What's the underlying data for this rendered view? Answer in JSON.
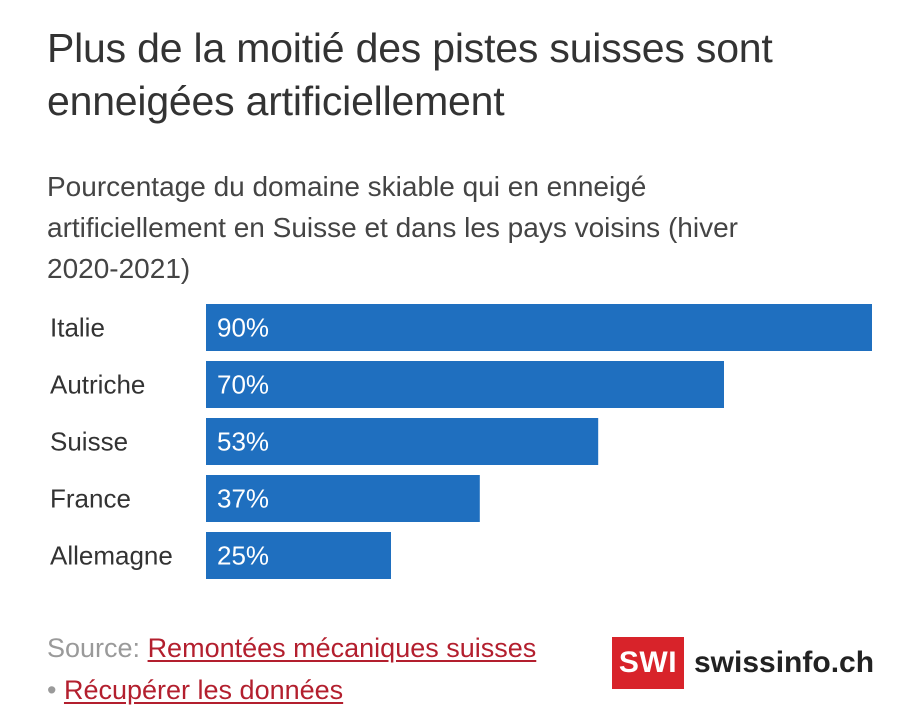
{
  "title": "Plus de la moitié des pistes suisses sont enneigées artificiellement",
  "subtitle": "Pourcentage du domaine skiable qui en enneigé artificiellement en Suisse et dans les pays voisins (hiver 2020-2021)",
  "chart_data": {
    "type": "bar",
    "orientation": "horizontal",
    "categories": [
      "Italie",
      "Autriche",
      "Suisse",
      "France",
      "Allemagne"
    ],
    "values": [
      90,
      70,
      53,
      37,
      25
    ],
    "value_labels": [
      "90%",
      "70%",
      "53%",
      "37%",
      "25%"
    ],
    "xlim": [
      0,
      90
    ],
    "grid": false,
    "bar_color": "#1f6fbf"
  },
  "footer": {
    "source_prefix": "Source: ",
    "source_link": "Remontées mécaniques suisses",
    "bullet": "• ",
    "download_link": "Récupérer les données",
    "link_color": "#b31f2e"
  },
  "logo": {
    "box_text": "SWI",
    "text": "swissinfo.ch",
    "box_color": "#d8232a"
  }
}
